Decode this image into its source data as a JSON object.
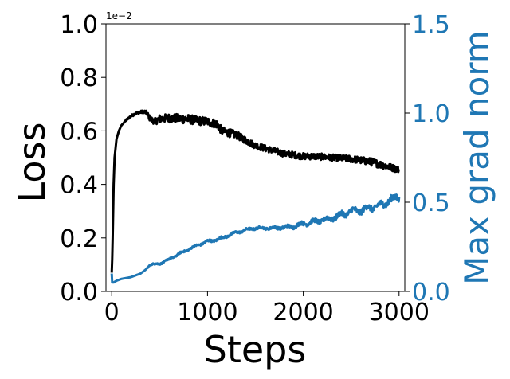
{
  "chart_data": {
    "type": "line",
    "x_label": "Steps",
    "y_left_label": "Loss",
    "y_right_label": "Max grad norm",
    "y_left_offset": "1e−2",
    "x_range": [
      -60,
      3060
    ],
    "x_ticks": [
      0,
      1000,
      2000,
      3000
    ],
    "x_tick_labels": [
      "0",
      "1000",
      "2000",
      "3000"
    ],
    "y_left_range": [
      0.0,
      1.0
    ],
    "y_left_ticks": [
      0.0,
      0.2,
      0.4,
      0.6,
      0.8,
      1.0
    ],
    "y_left_tick_labels": [
      "0.0",
      "0.2",
      "0.4",
      "0.6",
      "0.8",
      "1.0"
    ],
    "y_right_range": [
      0.0,
      1.5
    ],
    "y_right_ticks": [
      0.0,
      0.5,
      1.0,
      1.5
    ],
    "y_right_tick_labels": [
      "0.0",
      "0.5",
      "1.0",
      "1.5"
    ],
    "grid": false,
    "colors": {
      "loss": "#000000",
      "grad_norm": "#1f77b4",
      "axes": "#000000"
    },
    "series": [
      {
        "name": "Loss",
        "axis": "left",
        "color": "#000000",
        "x": [
          0,
          5,
          10,
          20,
          30,
          50,
          75,
          100,
          150,
          200,
          250,
          300,
          340,
          370,
          400,
          450,
          500,
          600,
          700,
          800,
          900,
          1000,
          1100,
          1150,
          1200,
          1300,
          1400,
          1500,
          1600,
          1700,
          1800,
          1900,
          2000,
          2100,
          2200,
          2300,
          2400,
          2500,
          2600,
          2700,
          2800,
          2900,
          3000
        ],
        "y": [
          0.07,
          0.12,
          0.2,
          0.4,
          0.5,
          0.57,
          0.6,
          0.62,
          0.64,
          0.655,
          0.665,
          0.67,
          0.672,
          0.665,
          0.645,
          0.635,
          0.645,
          0.648,
          0.646,
          0.644,
          0.638,
          0.635,
          0.625,
          0.6,
          0.595,
          0.585,
          0.565,
          0.545,
          0.535,
          0.525,
          0.515,
          0.51,
          0.505,
          0.505,
          0.503,
          0.5,
          0.498,
          0.495,
          0.49,
          0.485,
          0.475,
          0.465,
          0.455
        ],
        "noise": [
          0,
          0,
          0,
          0,
          0,
          0,
          0,
          0,
          0.003,
          0.004,
          0.004,
          0.005,
          0.006,
          0.008,
          0.01,
          0.012,
          0.015,
          0.016,
          0.017,
          0.017,
          0.016,
          0.016,
          0.016,
          0.015,
          0.015,
          0.014,
          0.013,
          0.012,
          0.012,
          0.012,
          0.012,
          0.012,
          0.012,
          0.012,
          0.012,
          0.012,
          0.012,
          0.013,
          0.013,
          0.014,
          0.014,
          0.013,
          0.012
        ]
      },
      {
        "name": "Max grad norm",
        "axis": "right",
        "color": "#1f77b4",
        "x": [
          0,
          5,
          20,
          50,
          100,
          200,
          300,
          350,
          400,
          500,
          600,
          700,
          800,
          900,
          1000,
          1100,
          1200,
          1300,
          1400,
          1500,
          1600,
          1700,
          1800,
          1900,
          2000,
          2100,
          2200,
          2300,
          2400,
          2500,
          2600,
          2700,
          2800,
          2900,
          3000
        ],
        "y": [
          0.1,
          0.05,
          0.05,
          0.06,
          0.07,
          0.08,
          0.1,
          0.12,
          0.15,
          0.155,
          0.18,
          0.21,
          0.235,
          0.26,
          0.28,
          0.29,
          0.31,
          0.33,
          0.345,
          0.355,
          0.355,
          0.355,
          0.36,
          0.365,
          0.38,
          0.39,
          0.4,
          0.41,
          0.43,
          0.45,
          0.455,
          0.47,
          0.48,
          0.51,
          0.53
        ],
        "noise": [
          0,
          0,
          0,
          0,
          0,
          0,
          0,
          0,
          0.004,
          0.004,
          0.004,
          0.005,
          0.005,
          0.005,
          0.006,
          0.006,
          0.006,
          0.006,
          0.006,
          0.006,
          0.006,
          0.007,
          0.008,
          0.009,
          0.01,
          0.011,
          0.012,
          0.013,
          0.014,
          0.015,
          0.016,
          0.016,
          0.017,
          0.018,
          0.02
        ]
      }
    ]
  }
}
